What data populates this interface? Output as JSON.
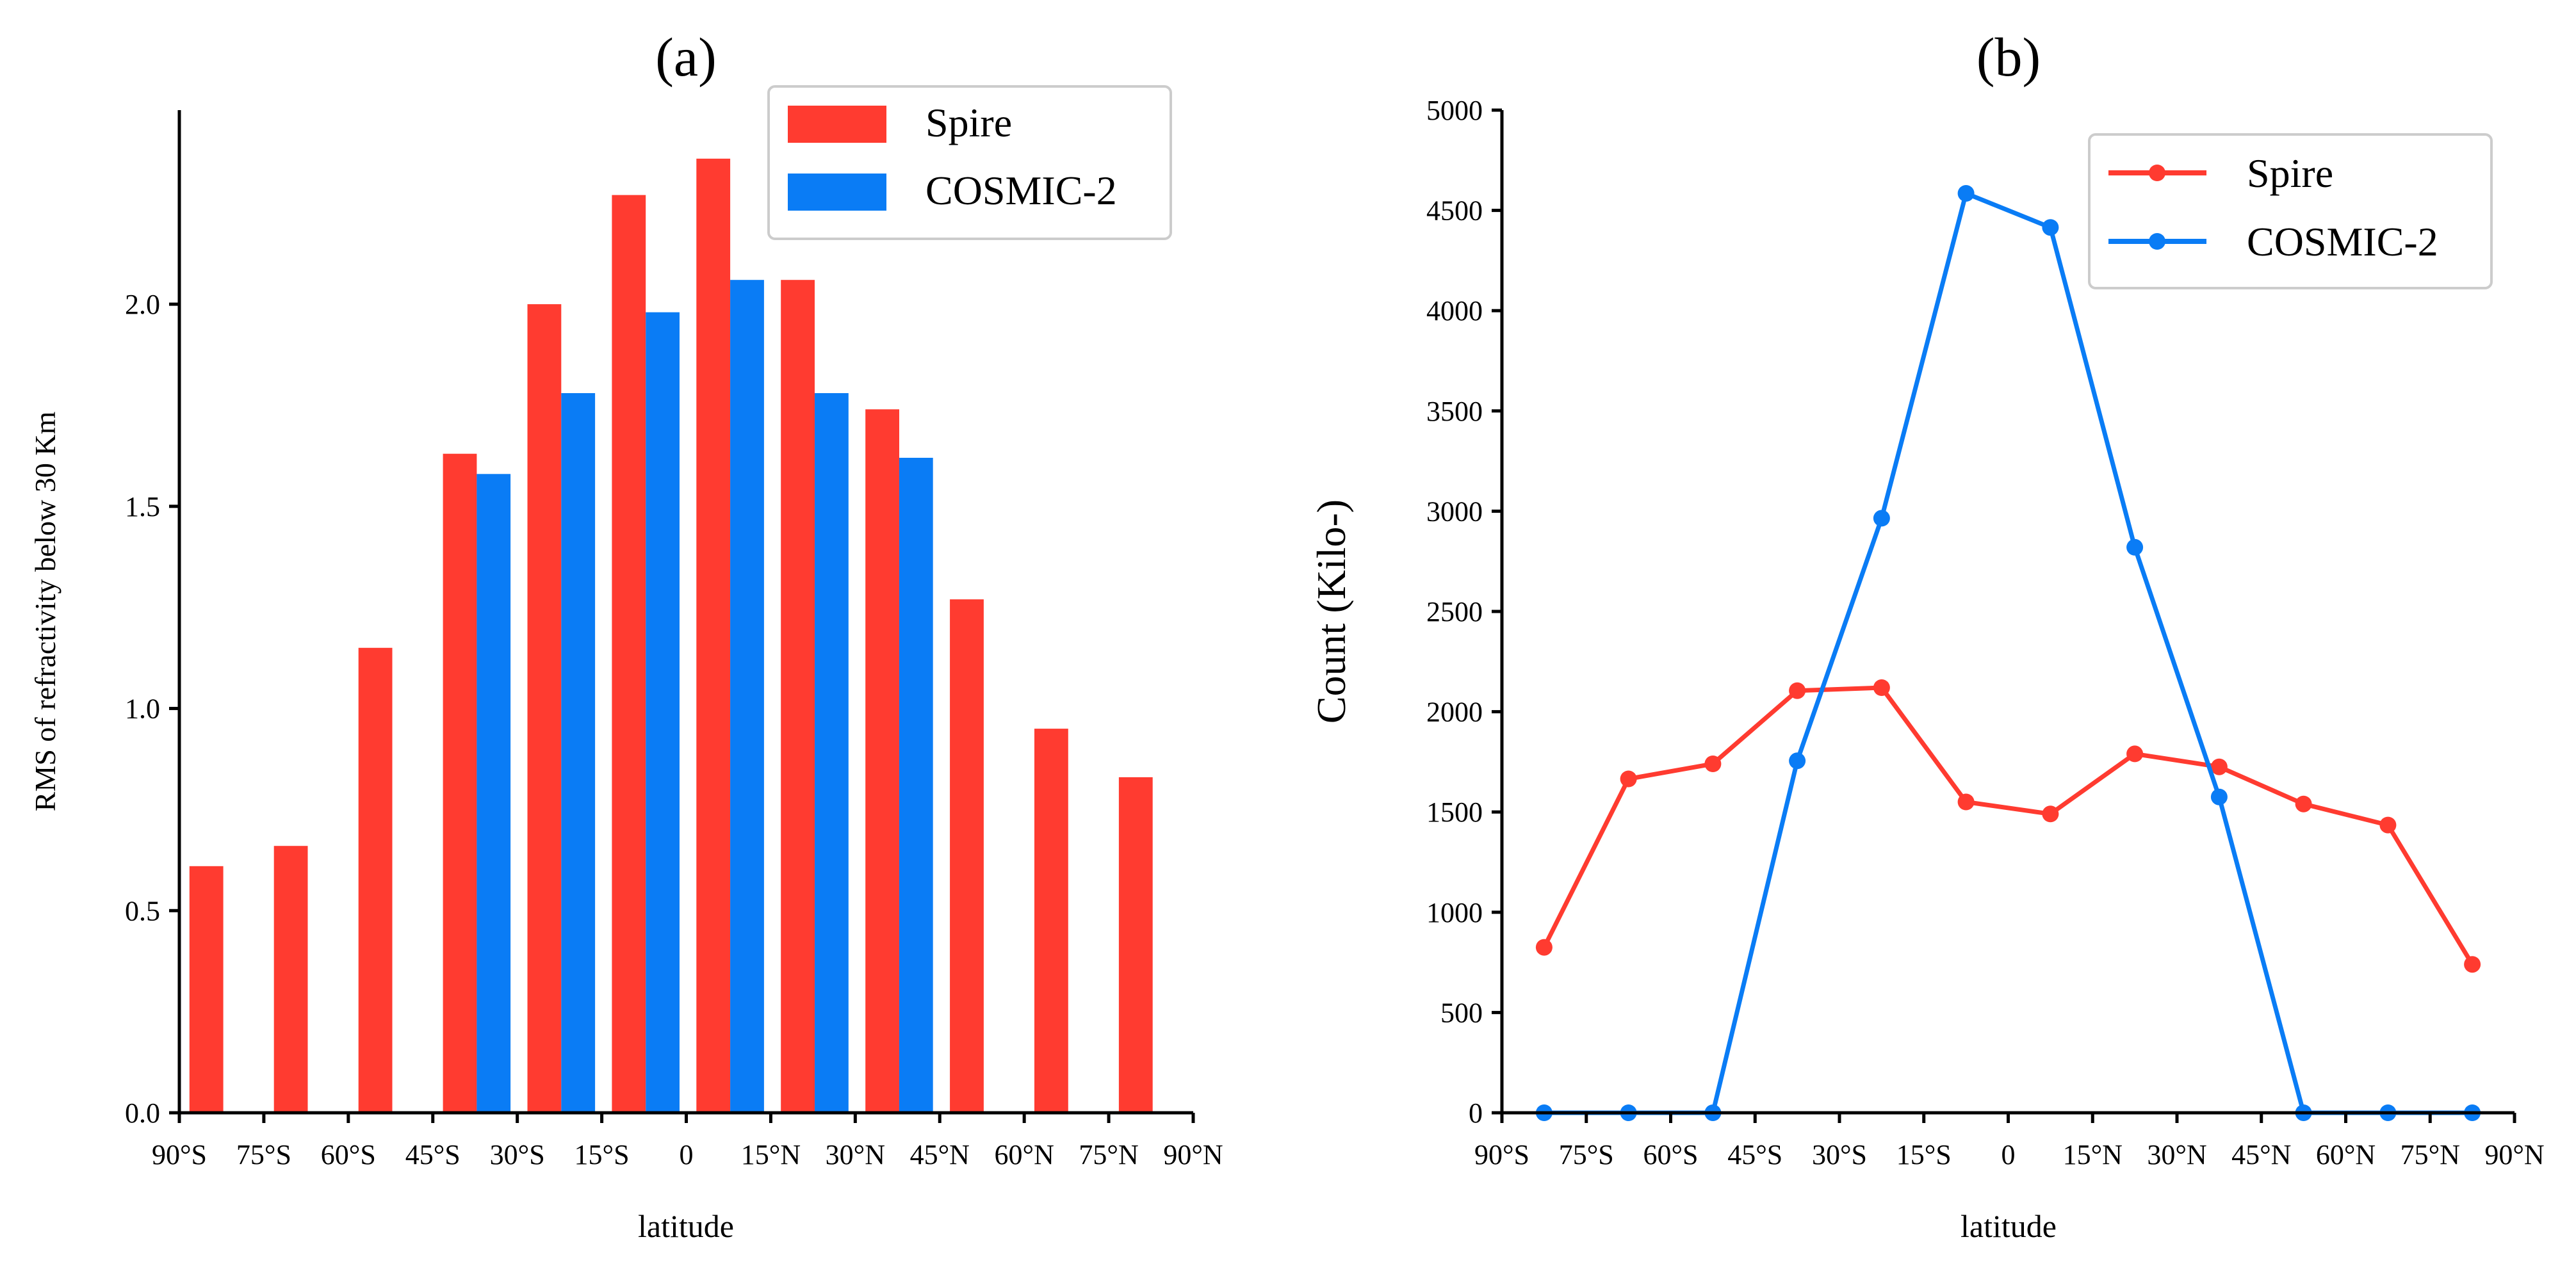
{
  "chart_data": [
    {
      "type": "bar",
      "panel_label": "(a)",
      "xlabel": "latitude",
      "ylabel": "RMS of refractivity below 30 Km",
      "x_tick_labels": [
        "90°S",
        "75°S",
        "60°S",
        "45°S",
        "30°S",
        "15°S",
        "0",
        "15°N",
        "30°N",
        "45°N",
        "60°N",
        "75°N",
        "90°N"
      ],
      "y_ticks": [
        0.0,
        0.5,
        1.0,
        1.5,
        2.0
      ],
      "y_tick_labels": [
        "0.0",
        "0.5",
        "1.0",
        "1.5",
        "2.0"
      ],
      "ylim": [
        0,
        2.48
      ],
      "categories": [
        "82.5°S",
        "67.5°S",
        "52.5°S",
        "37.5°S",
        "22.5°S",
        "7.5°S",
        "7.5°N",
        "22.5°N",
        "37.5°N",
        "52.5°N",
        "67.5°N",
        "82.5°N"
      ],
      "series": [
        {
          "name": "Spire",
          "color": "#ff3b30",
          "values": [
            0.61,
            0.66,
            1.15,
            1.63,
            2.0,
            2.27,
            2.36,
            2.06,
            1.74,
            1.27,
            0.95,
            0.83
          ]
        },
        {
          "name": "COSMIC-2",
          "color": "#0a7cf5",
          "values": [
            null,
            null,
            null,
            1.58,
            1.78,
            1.98,
            2.06,
            1.78,
            1.62,
            null,
            null,
            null
          ]
        }
      ],
      "legend": {
        "position": "top-right",
        "entries": [
          "Spire",
          "COSMIC-2"
        ]
      }
    },
    {
      "type": "line",
      "panel_label": "(b)",
      "xlabel": "latitude",
      "ylabel": "Count (Kilo-)",
      "x_tick_labels": [
        "90°S",
        "75°S",
        "60°S",
        "45°S",
        "30°S",
        "15°S",
        "0",
        "15°N",
        "30°N",
        "45°N",
        "60°N",
        "75°N",
        "90°N"
      ],
      "y_ticks": [
        0,
        500,
        1000,
        1500,
        2000,
        2500,
        3000,
        3500,
        4000,
        4500,
        5000
      ],
      "y_tick_labels": [
        "0",
        "500",
        "1000",
        "1500",
        "2000",
        "2500",
        "3000",
        "3500",
        "4000",
        "4500",
        "5000"
      ],
      "ylim": [
        0,
        5000
      ],
      "x": [
        -82.5,
        -67.5,
        -52.5,
        -37.5,
        -22.5,
        -7.5,
        7.5,
        22.5,
        37.5,
        52.5,
        67.5,
        82.5
      ],
      "series": [
        {
          "name": "Spire",
          "color": "#ff3b30",
          "values": [
            825,
            1665,
            1740,
            2105,
            2120,
            1550,
            1490,
            1790,
            1725,
            1540,
            1435,
            740
          ]
        },
        {
          "name": "COSMIC-2",
          "color": "#0a7cf5",
          "values": [
            0,
            0,
            0,
            1755,
            2965,
            4585,
            4415,
            2820,
            1575,
            0,
            0,
            0
          ]
        }
      ],
      "legend": {
        "position": "top-right",
        "entries": [
          "Spire",
          "COSMIC-2"
        ]
      }
    }
  ]
}
